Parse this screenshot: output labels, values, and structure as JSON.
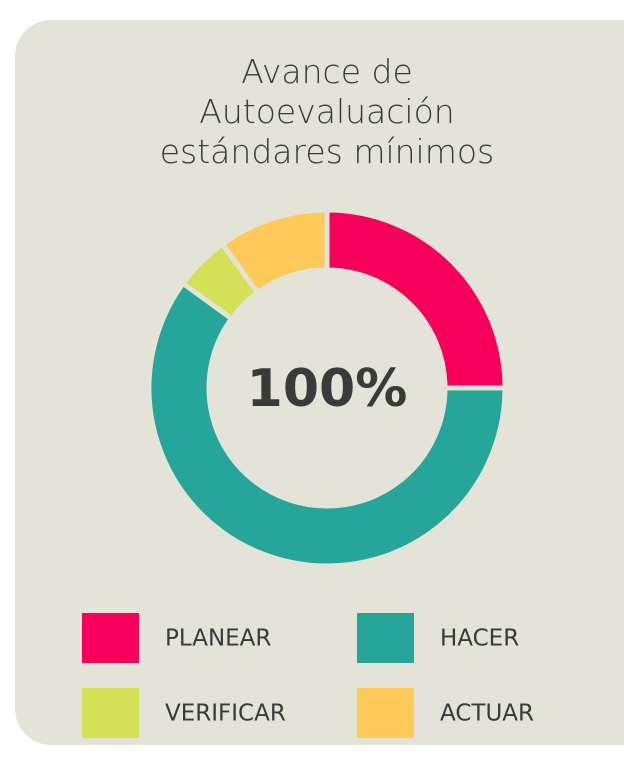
{
  "chart_data": {
    "type": "donut",
    "title": "Avance de Autoevaluación estándares mínimos",
    "center_label": "100%",
    "categories": [
      "PLANEAR",
      "HACER",
      "VERIFICAR",
      "ACTUAR"
    ],
    "values": [
      25,
      60,
      5,
      10
    ],
    "colors": [
      "#f5005a",
      "#26a69a",
      "#d4e157",
      "#ffca5a"
    ]
  }
}
